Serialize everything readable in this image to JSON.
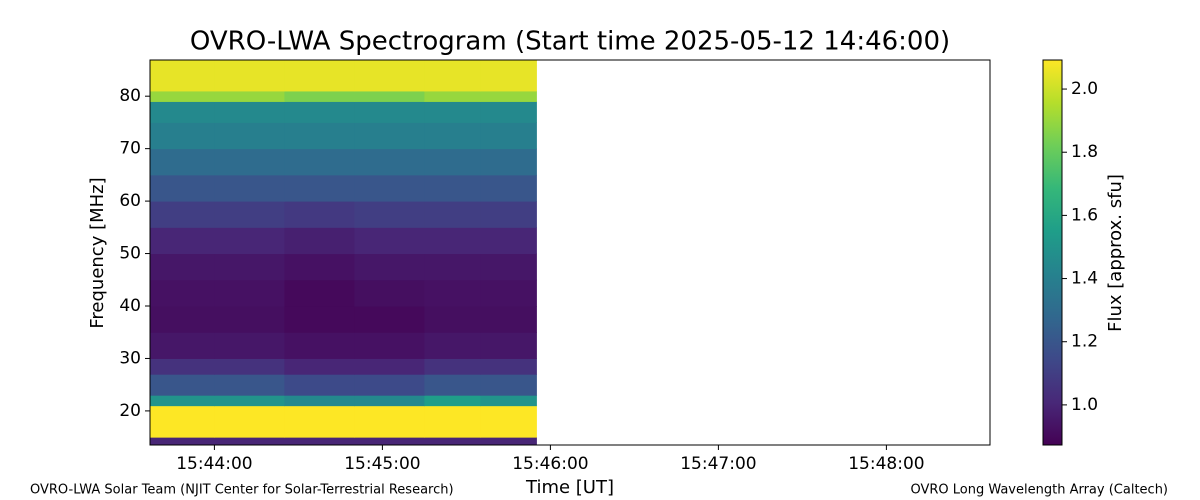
{
  "chart_data": {
    "type": "heatmap",
    "title": "OVRO-LWA Spectrogram (Start time 2025-05-12 14:46:00)",
    "xlabel": "Time [UT]",
    "ylabel": "Frequency [MHz]",
    "xlim": [
      56617,
      56917
    ],
    "xticks": [
      {
        "value": 56640,
        "label": "15:44:00"
      },
      {
        "value": 56700,
        "label": "15:45:00"
      },
      {
        "value": 56760,
        "label": "15:46:00"
      },
      {
        "value": 56820,
        "label": "15:47:00"
      },
      {
        "value": 56880,
        "label": "15:48:00"
      }
    ],
    "ylim": [
      13.5,
      86.9
    ],
    "yticks": [
      20,
      30,
      40,
      50,
      60,
      70,
      80
    ],
    "x": [
      56617,
      56640,
      56665,
      56690,
      56715,
      56735,
      56755
    ],
    "y": [
      13.5,
      15,
      21,
      23,
      27,
      30,
      35,
      40,
      45,
      50,
      55,
      60,
      65,
      70,
      75,
      79,
      81,
      86.9
    ],
    "z": [
      [
        1.0,
        1.0,
        1.0,
        1.0,
        1.0,
        1.0
      ],
      [
        2.1,
        2.1,
        2.1,
        2.1,
        2.1,
        2.1
      ],
      [
        1.5,
        1.5,
        1.45,
        1.45,
        1.55,
        1.5
      ],
      [
        1.2,
        1.2,
        1.15,
        1.15,
        1.2,
        1.2
      ],
      [
        1.05,
        1.05,
        1.0,
        1.0,
        1.05,
        1.05
      ],
      [
        0.95,
        0.95,
        0.93,
        0.93,
        0.95,
        0.95
      ],
      [
        0.92,
        0.92,
        0.9,
        0.9,
        0.92,
        0.92
      ],
      [
        0.93,
        0.93,
        0.9,
        0.92,
        0.93,
        0.93
      ],
      [
        0.95,
        0.95,
        0.93,
        0.95,
        0.95,
        0.95
      ],
      [
        1.0,
        1.0,
        0.98,
        1.0,
        1.0,
        1.0
      ],
      [
        1.1,
        1.1,
        1.08,
        1.1,
        1.1,
        1.1
      ],
      [
        1.2,
        1.2,
        1.2,
        1.2,
        1.2,
        1.2
      ],
      [
        1.3,
        1.3,
        1.3,
        1.3,
        1.3,
        1.3
      ],
      [
        1.4,
        1.4,
        1.4,
        1.4,
        1.4,
        1.4
      ],
      [
        1.45,
        1.45,
        1.45,
        1.45,
        1.45,
        1.45
      ],
      [
        1.9,
        1.9,
        1.85,
        1.85,
        1.9,
        1.9
      ],
      [
        2.05,
        2.05,
        2.05,
        2.05,
        2.05,
        2.05
      ]
    ],
    "colorbar_label": "Flux [approx. sfu]",
    "clim": [
      0.873,
      2.092
    ],
    "cticks": [
      {
        "value": 1,
        "label": "1.0"
      },
      1.2,
      1.4,
      1.6,
      1.8,
      {
        "value": 2,
        "label": "2.0"
      }
    ],
    "footer_left": "OVRO-LWA Solar Team (NJIT Center for Solar-Terrestrial Research)",
    "footer_right": "OVRO Long Wavelength Array (Caltech)"
  }
}
